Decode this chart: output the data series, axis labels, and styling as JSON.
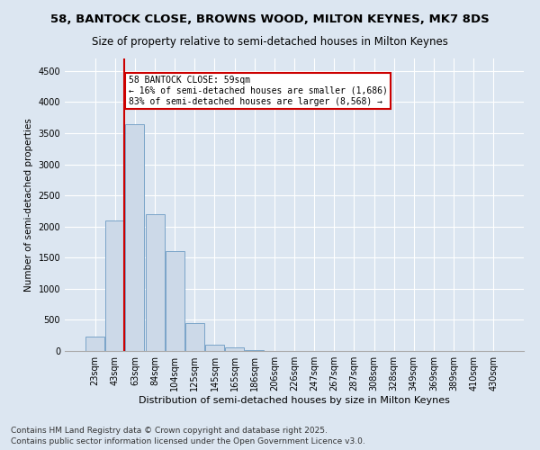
{
  "title1": "58, BANTOCK CLOSE, BROWNS WOOD, MILTON KEYNES, MK7 8DS",
  "title2": "Size of property relative to semi-detached houses in Milton Keynes",
  "xlabel": "Distribution of semi-detached houses by size in Milton Keynes",
  "ylabel": "Number of semi-detached properties",
  "categories": [
    "23sqm",
    "43sqm",
    "63sqm",
    "84sqm",
    "104sqm",
    "125sqm",
    "145sqm",
    "165sqm",
    "186sqm",
    "206sqm",
    "226sqm",
    "247sqm",
    "267sqm",
    "287sqm",
    "308sqm",
    "328sqm",
    "349sqm",
    "369sqm",
    "389sqm",
    "410sqm",
    "430sqm"
  ],
  "values": [
    230,
    2100,
    3650,
    2200,
    1600,
    450,
    100,
    60,
    10,
    2,
    0,
    0,
    0,
    0,
    0,
    0,
    0,
    0,
    0,
    0,
    0
  ],
  "bar_color": "#ccd9e8",
  "bar_edge_color": "#7aa4c8",
  "red_line_x": 1.48,
  "annotation_text": "58 BANTOCK CLOSE: 59sqm\n← 16% of semi-detached houses are smaller (1,686)\n83% of semi-detached houses are larger (8,568) →",
  "annotation_box_color": "#ffffff",
  "annotation_border_color": "#cc0000",
  "ylim": [
    0,
    4700
  ],
  "yticks": [
    0,
    500,
    1000,
    1500,
    2000,
    2500,
    3000,
    3500,
    4000,
    4500
  ],
  "background_color": "#dce6f1",
  "plot_bg_color": "#dce6f1",
  "footer": "Contains HM Land Registry data © Crown copyright and database right 2025.\nContains public sector information licensed under the Open Government Licence v3.0.",
  "title1_fontsize": 9.5,
  "title2_fontsize": 8.5,
  "xlabel_fontsize": 8,
  "ylabel_fontsize": 7.5,
  "tick_fontsize": 7,
  "footer_fontsize": 6.5,
  "annotation_fontsize": 7
}
